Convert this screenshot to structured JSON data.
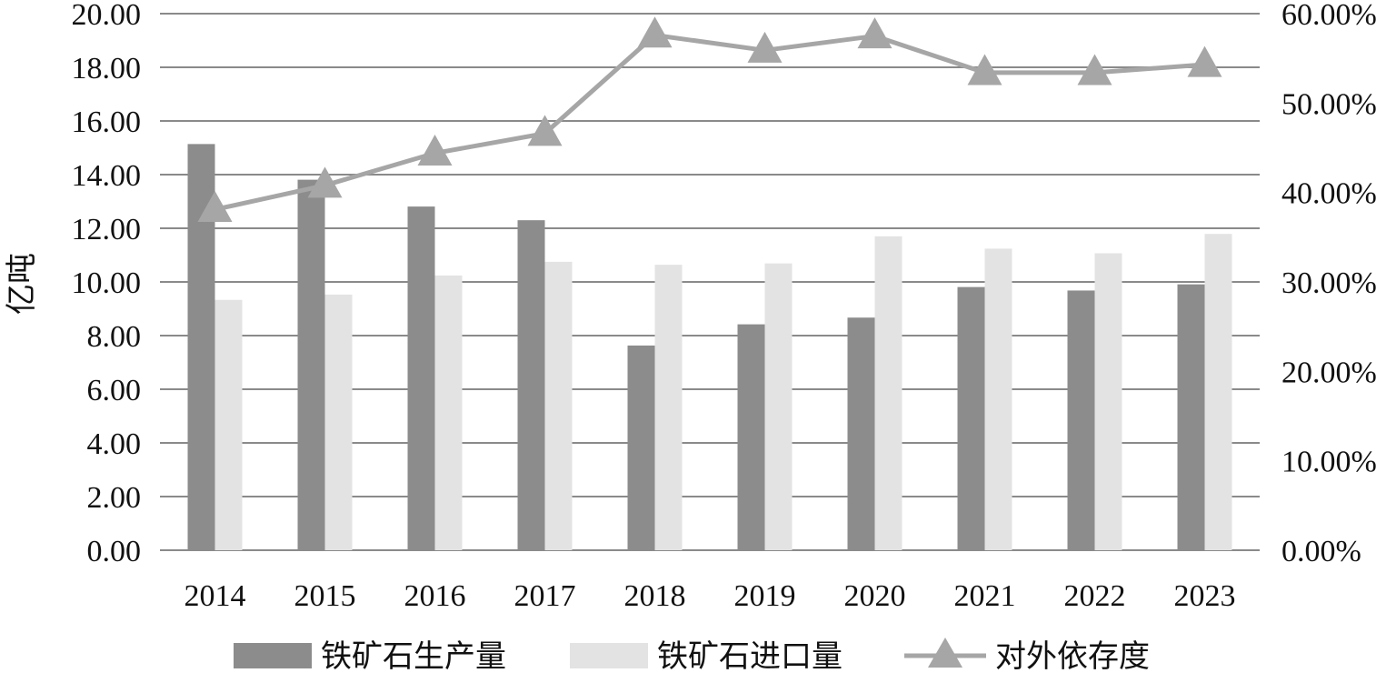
{
  "chart_data": {
    "type": "bar",
    "categories": [
      "2014",
      "2015",
      "2016",
      "2017",
      "2018",
      "2019",
      "2020",
      "2021",
      "2022",
      "2023"
    ],
    "series": [
      {
        "name": "铁矿石生产量",
        "kind": "bar",
        "axis": "left",
        "color": "#8c8c8c",
        "values": [
          15.14,
          13.81,
          12.81,
          12.3,
          7.63,
          8.42,
          8.67,
          9.81,
          9.68,
          9.91
        ]
      },
      {
        "name": "铁矿石进口量",
        "kind": "bar",
        "axis": "left",
        "color": "#e3e3e3",
        "values": [
          9.33,
          9.53,
          10.24,
          10.75,
          10.64,
          10.69,
          11.7,
          11.24,
          11.07,
          11.79
        ]
      },
      {
        "name": "对外依存度",
        "kind": "line",
        "marker": "triangle",
        "axis": "right",
        "color": "#a6a6a6",
        "values": [
          38.1,
          40.8,
          44.4,
          46.6,
          57.6,
          55.9,
          57.5,
          53.4,
          53.4,
          54.3
        ]
      }
    ],
    "ylabel": "亿吨",
    "ylim": [
      0,
      20
    ],
    "yticks": [
      "0.00",
      "2.00",
      "4.00",
      "6.00",
      "8.00",
      "10.00",
      "12.00",
      "14.00",
      "16.00",
      "18.00",
      "20.00"
    ],
    "y2lim": [
      0,
      60
    ],
    "y2ticks": [
      "0.00%",
      "10.00%",
      "20.00%",
      "30.00%",
      "40.00%",
      "50.00%",
      "60.00%"
    ],
    "grid": true,
    "legend": "bottom"
  }
}
